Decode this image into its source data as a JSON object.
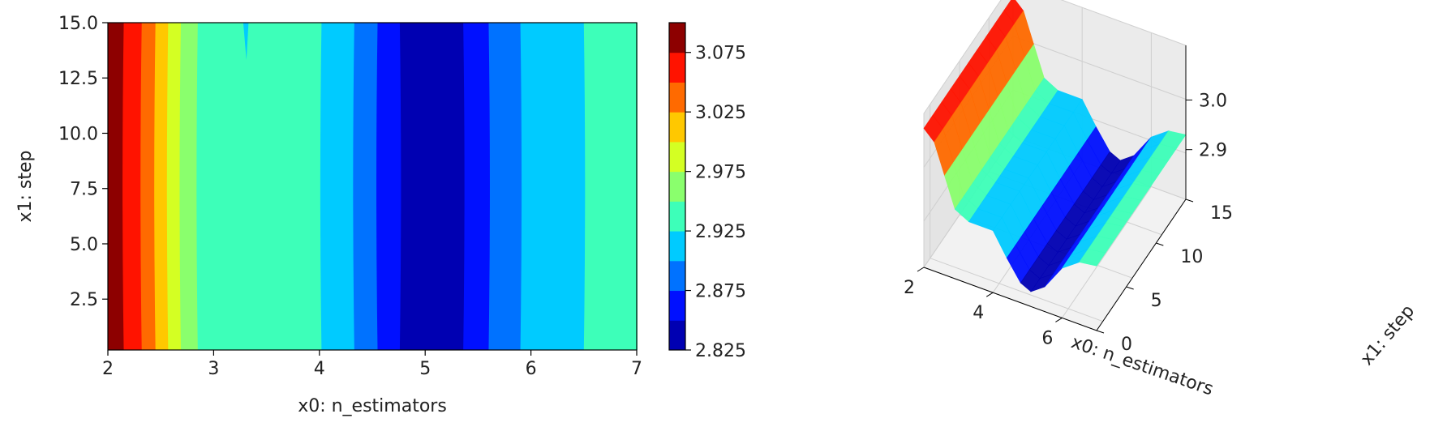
{
  "chart_data": [
    {
      "type": "contour",
      "xlabel": "x0: n_estimators",
      "ylabel": "x1: step",
      "xlim": [
        2,
        7
      ],
      "ylim": [
        0.2,
        15
      ],
      "xticks": [
        "2",
        "3",
        "4",
        "5",
        "6",
        "7"
      ],
      "yticks": [
        "2.5",
        "5.0",
        "7.5",
        "10.0",
        "12.5",
        "15.0"
      ],
      "levels": [
        2.825,
        2.85,
        2.875,
        2.9,
        2.925,
        2.95,
        2.975,
        3.0,
        3.025,
        3.05,
        3.075,
        3.1
      ],
      "level_colors": [
        "#0000b2",
        "#0010ff",
        "#0072ff",
        "#00cbff",
        "#3dffb9",
        "#8aff6d",
        "#d4ff23",
        "#ffc800",
        "#ff6a00",
        "#ff1300",
        "#8d0000"
      ],
      "colorbar": {
        "ticks": [
          "2.825",
          "2.875",
          "2.925",
          "2.975",
          "3.025",
          "3.075"
        ]
      },
      "bands": [
        {
          "x0": 2.0,
          "x1": 2.15,
          "level": 10
        },
        {
          "x0": 2.15,
          "x1": 2.32,
          "level": 9
        },
        {
          "x0": 2.32,
          "x1": 2.45,
          "level": 8
        },
        {
          "x0": 2.45,
          "x1": 2.57,
          "level": 7
        },
        {
          "x0": 2.57,
          "x1": 2.69,
          "level": 6
        },
        {
          "x0": 2.69,
          "x1": 2.85,
          "level": 5
        },
        {
          "x0": 2.85,
          "x1": 4.02,
          "level": 4
        },
        {
          "x0": 4.02,
          "x1": 4.33,
          "level": 3
        },
        {
          "x0": 4.33,
          "x1": 4.55,
          "level": 2
        },
        {
          "x0": 4.55,
          "x1": 4.76,
          "level": 1
        },
        {
          "x0": 4.76,
          "x1": 5.36,
          "level": 0
        },
        {
          "x0": 5.36,
          "x1": 5.6,
          "level": 1
        },
        {
          "x0": 5.6,
          "x1": 5.9,
          "level": 2
        },
        {
          "x0": 5.9,
          "x1": 6.5,
          "level": 3
        },
        {
          "x0": 6.5,
          "x1": 7.0,
          "level": 4
        }
      ]
    },
    {
      "type": "surface3d",
      "xlabel": "x0: n_estimators",
      "ylabel": "x1: step",
      "xticks": [
        "2",
        "4",
        "6"
      ],
      "yticks": [
        "0",
        "5",
        "10",
        "15"
      ],
      "zticks": [
        "2.9",
        "3.0"
      ],
      "xlim": [
        2,
        7
      ],
      "ylim": [
        0,
        15
      ],
      "profile": {
        "x": [
          2.0,
          2.3,
          2.6,
          2.9,
          3.3,
          4.0,
          4.4,
          4.8,
          5.1,
          5.5,
          6.0,
          6.5,
          7.0
        ],
        "z": [
          3.08,
          3.06,
          3.0,
          2.94,
          2.925,
          2.925,
          2.88,
          2.84,
          2.83,
          2.85,
          2.9,
          2.925,
          2.93
        ]
      }
    }
  ]
}
